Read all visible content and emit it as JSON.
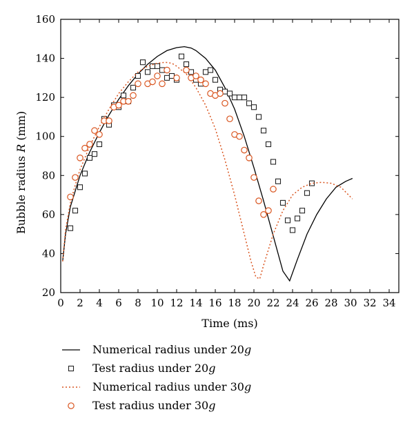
{
  "chart_data": {
    "type": "scatter",
    "title": "",
    "xlabel": "Time (ms)",
    "ylabel_prefix": "Bubble radius ",
    "ylabel_var": "R",
    "ylabel_suffix": " (mm)",
    "xlim": [
      0,
      35
    ],
    "ylim": [
      20,
      160
    ],
    "xticks": [
      0,
      2,
      4,
      6,
      8,
      10,
      12,
      14,
      16,
      18,
      20,
      22,
      24,
      26,
      28,
      30,
      32,
      34
    ],
    "yticks": [
      20,
      40,
      60,
      80,
      100,
      120,
      140,
      160
    ],
    "grid": false,
    "legend_position": "below",
    "series": [
      {
        "name_prefix": "Numerical radius under 20",
        "name_unit": "g",
        "kind": "line",
        "style": "solid",
        "color": "#000000",
        "x": [
          0.2,
          0.5,
          1,
          1.5,
          2,
          3,
          4,
          5,
          6,
          7,
          8,
          9,
          10,
          11,
          12,
          12.8,
          13.5,
          14,
          15,
          16,
          17,
          18,
          19,
          20,
          21,
          22,
          23,
          23.7,
          24.5,
          25.5,
          26.5,
          27.5,
          28.5,
          29.5,
          30.2
        ],
        "y": [
          36,
          50,
          64,
          72,
          80,
          92,
          102,
          111,
          119,
          126,
          132,
          137,
          141,
          144,
          145.5,
          146,
          145.3,
          144,
          140,
          134,
          125,
          114,
          100,
          84,
          67,
          49,
          31,
          26,
          37,
          50,
          60,
          68,
          74,
          77,
          78.5
        ]
      },
      {
        "name_prefix": "Test radius under 20",
        "name_unit": "g",
        "kind": "scatter",
        "marker": "square",
        "color": "#222222",
        "x": [
          1,
          1.5,
          2,
          2.5,
          3,
          3.5,
          4,
          4.5,
          5,
          5.5,
          6,
          6.5,
          7,
          7.5,
          8,
          8.5,
          9,
          9.5,
          10,
          10.5,
          11,
          11.5,
          12,
          12.5,
          13,
          13.5,
          14,
          14.5,
          15,
          15.5,
          16,
          16.5,
          17,
          17.5,
          18,
          18.5,
          19,
          19.5,
          20,
          20.5,
          21,
          21.5,
          22,
          22.5,
          23,
          23.5,
          24,
          24.5,
          25,
          25.5,
          26
        ],
        "y": [
          53,
          62,
          74,
          81,
          89,
          91,
          96,
          109,
          106,
          116,
          115,
          121,
          118,
          125,
          131,
          138,
          133,
          136,
          136,
          134,
          130,
          131,
          129,
          141,
          137,
          133,
          129,
          127,
          133,
          134,
          129,
          124,
          123,
          122,
          120,
          120,
          120,
          117,
          115,
          110,
          103,
          96,
          87,
          77,
          66,
          57,
          52,
          58,
          62,
          71,
          76
        ]
      },
      {
        "name_prefix": "Numerical radius under 30",
        "name_unit": "g",
        "kind": "line",
        "style": "dotted",
        "color": "#d9541e",
        "x": [
          0.2,
          0.5,
          1,
          1.5,
          2,
          3,
          4,
          5,
          6,
          7,
          8,
          9,
          10,
          10.8,
          11.5,
          12,
          13,
          14,
          15,
          16,
          17,
          18,
          19,
          19.7,
          20.2,
          20.6,
          21,
          22,
          23,
          24,
          25,
          26,
          27,
          28,
          29,
          30.2
        ],
        "y": [
          36,
          52,
          66,
          75,
          83,
          95,
          105,
          114,
          122,
          128,
          133,
          136,
          137.5,
          138,
          137.5,
          136,
          132,
          125,
          116,
          104,
          88,
          70,
          50,
          36,
          28,
          27,
          34,
          50,
          62,
          70,
          74,
          76,
          76.5,
          76,
          74,
          68
        ]
      },
      {
        "name_prefix": "Test radius under 30",
        "name_unit": "g",
        "kind": "scatter",
        "marker": "circle",
        "color": "#d9541e",
        "x": [
          1,
          1.5,
          2,
          2.5,
          3,
          3.5,
          4,
          4.5,
          5,
          5.5,
          6,
          6.5,
          7,
          7.5,
          8,
          9,
          9.5,
          10,
          10.5,
          11,
          12,
          13,
          13.5,
          14,
          14.5,
          15,
          15.5,
          16,
          16.5,
          17,
          17.5,
          18,
          18.5,
          19,
          19.5,
          20,
          20.5,
          21,
          21.5,
          22
        ],
        "y": [
          69,
          79,
          89,
          94,
          96,
          103,
          101,
          108,
          108,
          115,
          116,
          118,
          118,
          121,
          127,
          127,
          128,
          131,
          127,
          134,
          130,
          134,
          130,
          131,
          129,
          127,
          122,
          121,
          122,
          117,
          109,
          101,
          100,
          93,
          89,
          79,
          67,
          60,
          62,
          73
        ]
      }
    ]
  }
}
